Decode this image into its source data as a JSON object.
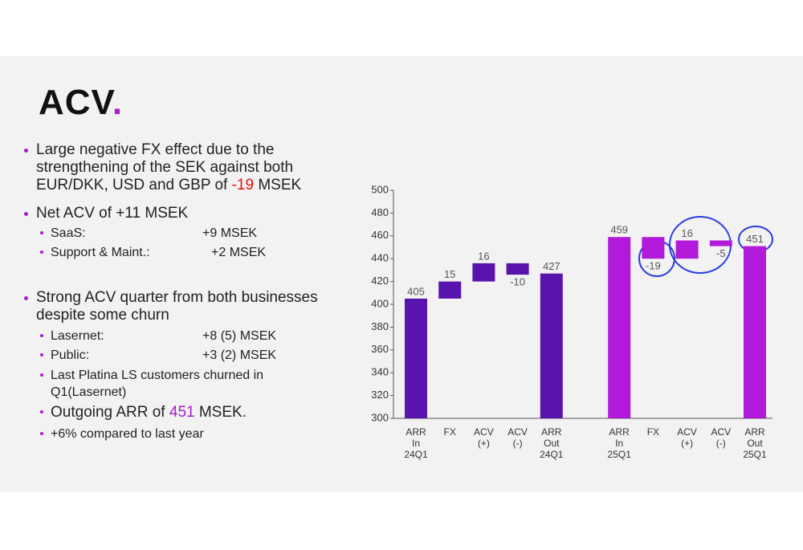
{
  "title": {
    "text": "ACV",
    "accent": "."
  },
  "bullets": [
    {
      "level": 1,
      "parts": [
        {
          "text": "Large negative FX effect due to the strengthening of the SEK against both EUR/DKK, USD and GBP of "
        },
        {
          "text": "-19",
          "color": "#e8120c"
        },
        {
          "text": " MSEK"
        }
      ]
    },
    {
      "level": 1,
      "parts": [
        {
          "text": "Net ACV of +11 MSEK"
        }
      ]
    },
    {
      "level": 2,
      "parts": [
        {
          "text": "SaaS:"
        }
      ],
      "value": "+9 MSEK"
    },
    {
      "level": 2,
      "parts": [
        {
          "text": "Support & Maint.:"
        }
      ],
      "value": "+2 MSEK"
    },
    {
      "level": 1,
      "parts": [
        {
          "text": "Strong ACV quarter from both businesses despite some churn"
        }
      ]
    },
    {
      "level": 2,
      "parts": [
        {
          "text": "Lasernet:"
        }
      ],
      "value": "+8 (5) MSEK"
    },
    {
      "level": 2,
      "parts": [
        {
          "text": "Public:"
        }
      ],
      "value": "+3 (2) MSEK"
    },
    {
      "level": 2,
      "parts": [
        {
          "text": "Last Platina LS customers churned in Q1(Lasernet)"
        }
      ]
    },
    {
      "level": 2,
      "large": true,
      "parts": [
        {
          "text": "Outgoing ARR of "
        },
        {
          "text": "451",
          "color": "#a81ad0"
        },
        {
          "text": " MSEK."
        }
      ]
    },
    {
      "level": 2,
      "parts": [
        {
          "text": "+6% compared to last year"
        }
      ]
    }
  ],
  "chart_data": {
    "type": "waterfall",
    "categories": [
      "ARR In 24Q1",
      "FX",
      "ACV (+)",
      "ACV (-)",
      "ARR Out 24Q1",
      null,
      "ARR In 25Q1",
      "FX",
      "ACV (+)",
      "ACV (-)",
      "ARR Out 25Q1"
    ],
    "values": [
      405,
      15,
      16,
      -10,
      427,
      null,
      459,
      -19,
      16,
      -5,
      451
    ],
    "measures": [
      "total",
      "relative",
      "relative",
      "relative",
      "total",
      null,
      "total",
      "relative",
      "relative",
      "relative",
      "total"
    ],
    "colors": [
      "#5a14ae",
      "#5a14ae",
      "#5a14ae",
      "#5a14ae",
      "#5a14ae",
      null,
      "#b01ad8",
      "#b01ad8",
      "#b01ad8",
      "#b01ad8",
      "#b01ad8"
    ],
    "ylim": [
      300,
      500
    ],
    "yticks": [
      300,
      320,
      340,
      360,
      380,
      400,
      420,
      440,
      460,
      480,
      500
    ],
    "grid": false
  }
}
